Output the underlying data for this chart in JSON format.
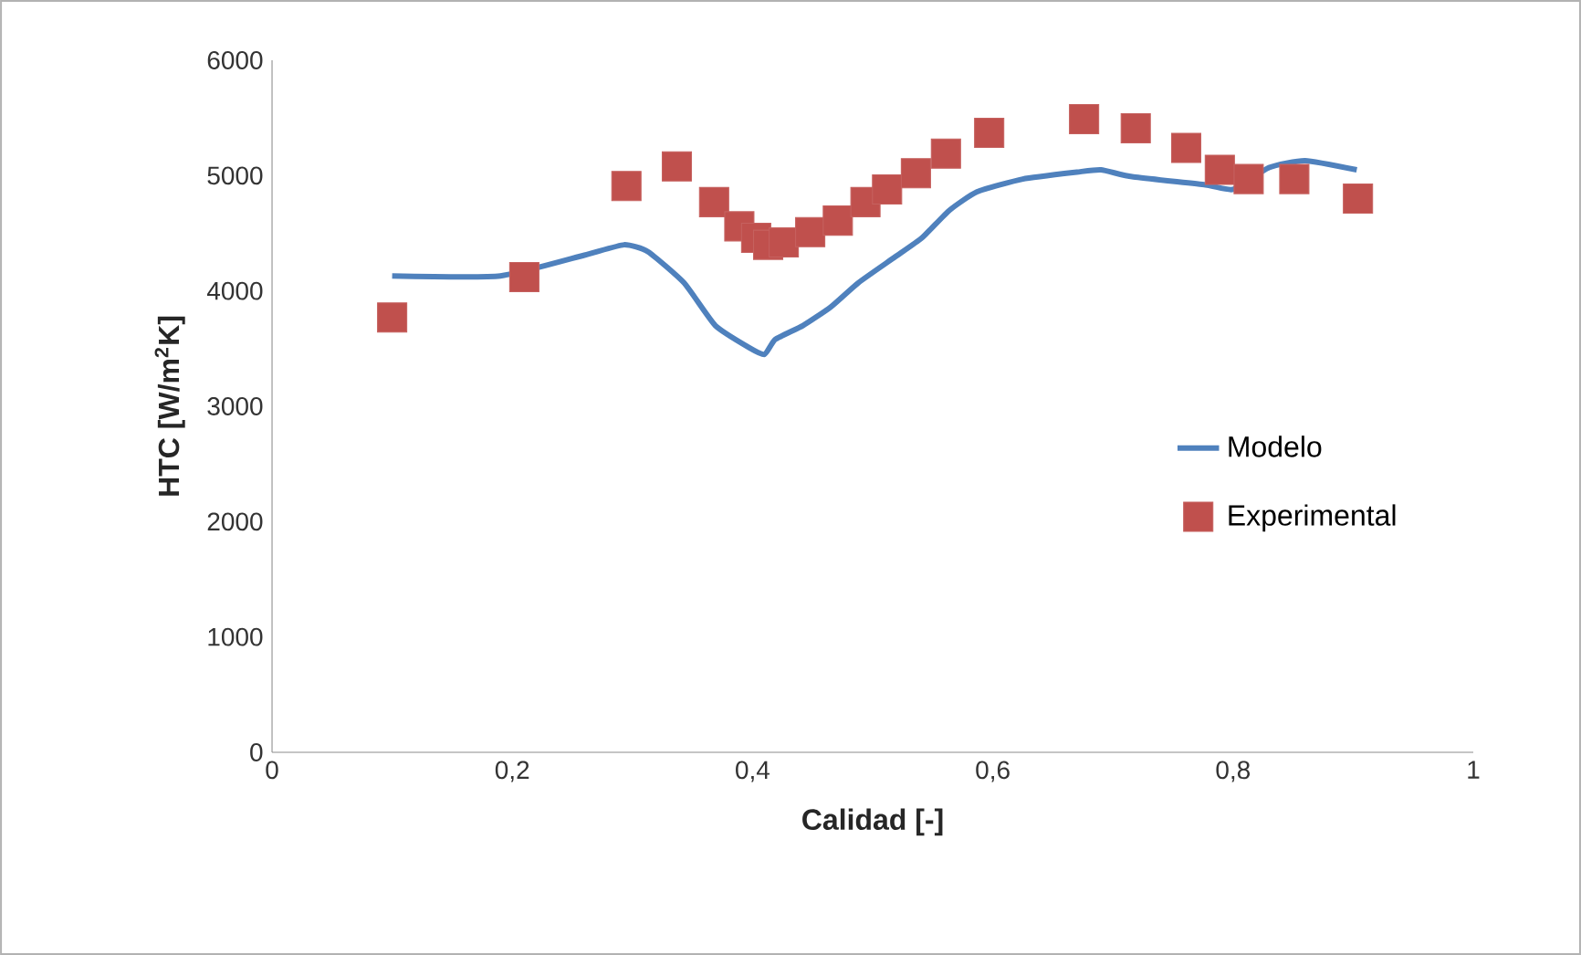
{
  "chart_data": {
    "type": "scatter",
    "xlabel": "Calidad  [-]",
    "ylabel": "HTC [W/m$^{2}$K]",
    "xlim": [
      0,
      1
    ],
    "ylim": [
      0,
      6000
    ],
    "xticks": [
      0,
      {
        "value": 0.2,
        "label": "0,2"
      },
      {
        "value": 0.4,
        "label": "0,4"
      },
      {
        "value": 0.6,
        "label": "0,6"
      },
      {
        "value": 0.8,
        "label": "0,8"
      },
      1
    ],
    "yticks": [
      0,
      1000,
      2000,
      3000,
      4000,
      5000,
      6000
    ],
    "legend": "right",
    "grid": false,
    "series": [
      {
        "name": "Modelo",
        "type": "line",
        "color": "#4f81bd",
        "marker": "none",
        "x": [
          0.1,
          0.19,
          0.214,
          0.26,
          0.293,
          0.313,
          0.343,
          0.369,
          0.397,
          0.41,
          0.419,
          0.442,
          0.465,
          0.488,
          0.518,
          0.541,
          0.564,
          0.587,
          0.625,
          0.67,
          0.69,
          0.716,
          0.777,
          0.8,
          0.83,
          0.86,
          0.903
        ],
        "values": [
          4130,
          4130,
          null,
          4310,
          4400,
          4340,
          4070,
          3700,
          3510,
          3450,
          3580,
          3700,
          3860,
          4070,
          4290,
          4460,
          4700,
          4860,
          4970,
          5030,
          5050,
          4990,
          4920,
          4880,
          5070,
          5130,
          5050
        ]
      },
      {
        "name": "Experimental",
        "color": "#c0504d",
        "marker": "square",
        "x": [
          0.1,
          0.21,
          0.295,
          0.337,
          0.368,
          0.389,
          0.403,
          0.413,
          0.426,
          0.448,
          0.471,
          0.494,
          0.512,
          0.536,
          0.561,
          0.597,
          0.676,
          0.719,
          0.761,
          0.789,
          0.813,
          0.851,
          0.904
        ],
        "values": [
          3770,
          4120,
          4910,
          5080,
          4770,
          4560,
          4460,
          4400,
          4420,
          4510,
          4610,
          4770,
          4880,
          5020,
          5190,
          5370,
          5490,
          5410,
          5240,
          5050,
          4970,
          4970,
          4800
        ]
      }
    ]
  }
}
